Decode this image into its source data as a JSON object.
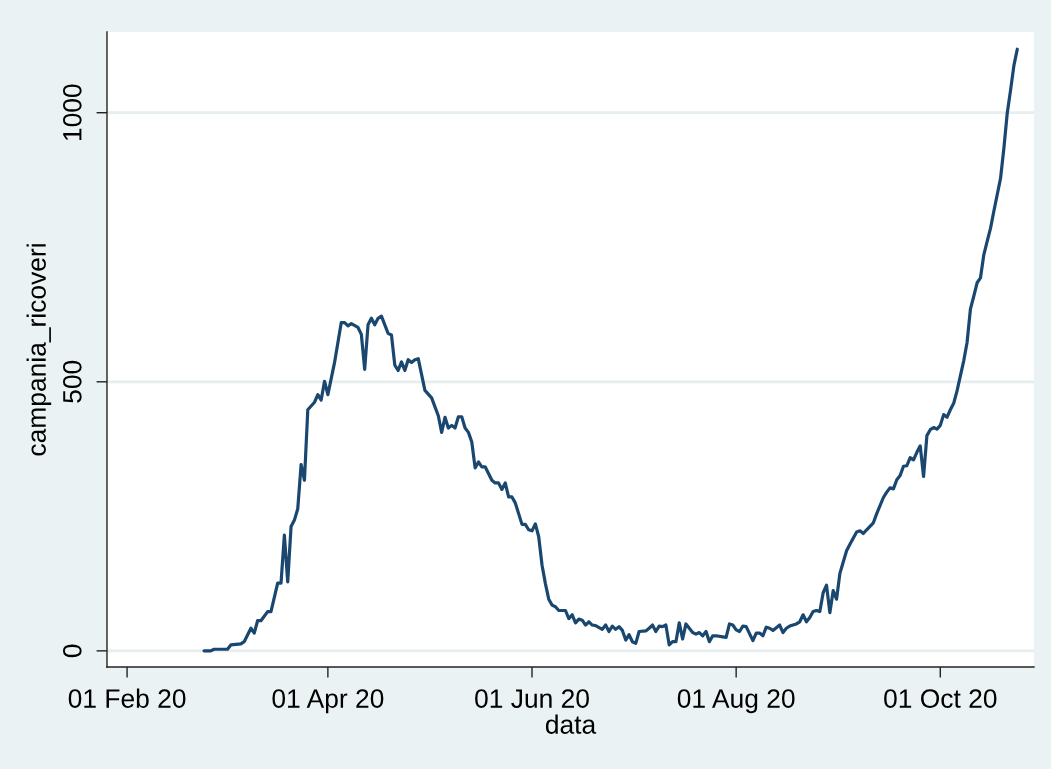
{
  "chart_data": {
    "type": "line",
    "xlabel": "data",
    "ylabel": "campania_ricoveri",
    "x": [
      "2020-02-24",
      "2020-02-26",
      "2020-02-27",
      "2020-03-02",
      "2020-03-03",
      "2020-03-06",
      "2020-03-07",
      "2020-03-09",
      "2020-03-10",
      "2020-03-11",
      "2020-03-12",
      "2020-03-14",
      "2020-03-15",
      "2020-03-17",
      "2020-03-18",
      "2020-03-19",
      "2020-03-20",
      "2020-03-21",
      "2020-03-22",
      "2020-03-23",
      "2020-03-24",
      "2020-03-25",
      "2020-03-26",
      "2020-03-28",
      "2020-03-29",
      "2020-03-30",
      "2020-03-31",
      "2020-04-01",
      "2020-04-03",
      "2020-04-05",
      "2020-04-06",
      "2020-04-07",
      "2020-04-08",
      "2020-04-10",
      "2020-04-11",
      "2020-04-12",
      "2020-04-13",
      "2020-04-14",
      "2020-04-15",
      "2020-04-16",
      "2020-04-17",
      "2020-04-19",
      "2020-04-20",
      "2020-04-21",
      "2020-04-22",
      "2020-04-23",
      "2020-04-24",
      "2020-04-25",
      "2020-04-26",
      "2020-04-27",
      "2020-04-28",
      "2020-04-30",
      "2020-05-02",
      "2020-05-04",
      "2020-05-05",
      "2020-05-06",
      "2020-05-07",
      "2020-05-08",
      "2020-05-09",
      "2020-05-10",
      "2020-05-11",
      "2020-05-12",
      "2020-05-13",
      "2020-05-14",
      "2020-05-15",
      "2020-05-16",
      "2020-05-17",
      "2020-05-18",
      "2020-05-20",
      "2020-05-21",
      "2020-05-22",
      "2020-05-23",
      "2020-05-24",
      "2020-05-25",
      "2020-05-26",
      "2020-05-27",
      "2020-05-28",
      "2020-05-29",
      "2020-05-30",
      "2020-05-31",
      "2020-06-01",
      "2020-06-02",
      "2020-06-03",
      "2020-06-04",
      "2020-06-05",
      "2020-06-06",
      "2020-06-07",
      "2020-06-08",
      "2020-06-09",
      "2020-06-11",
      "2020-06-12",
      "2020-06-13",
      "2020-06-14",
      "2020-06-15",
      "2020-06-16",
      "2020-06-17",
      "2020-06-18",
      "2020-06-19",
      "2020-06-20",
      "2020-06-22",
      "2020-06-23",
      "2020-06-24",
      "2020-06-25",
      "2020-06-26",
      "2020-06-27",
      "2020-06-28",
      "2020-06-29",
      "2020-06-30",
      "2020-07-01",
      "2020-07-02",
      "2020-07-03",
      "2020-07-05",
      "2020-07-06",
      "2020-07-07",
      "2020-07-08",
      "2020-07-09",
      "2020-07-10",
      "2020-07-11",
      "2020-07-12",
      "2020-07-13",
      "2020-07-14",
      "2020-07-15",
      "2020-07-16",
      "2020-07-17",
      "2020-07-18",
      "2020-07-19",
      "2020-07-20",
      "2020-07-21",
      "2020-07-22",
      "2020-07-23",
      "2020-07-24",
      "2020-07-25",
      "2020-07-26",
      "2020-07-28",
      "2020-07-29",
      "2020-07-30",
      "2020-07-31",
      "2020-08-01",
      "2020-08-02",
      "2020-08-03",
      "2020-08-04",
      "2020-08-06",
      "2020-08-07",
      "2020-08-08",
      "2020-08-09",
      "2020-08-10",
      "2020-08-11",
      "2020-08-12",
      "2020-08-14",
      "2020-08-15",
      "2020-08-16",
      "2020-08-17",
      "2020-08-19",
      "2020-08-20",
      "2020-08-21",
      "2020-08-22",
      "2020-08-23",
      "2020-08-24",
      "2020-08-25",
      "2020-08-26",
      "2020-08-27",
      "2020-08-28",
      "2020-08-29",
      "2020-08-30",
      "2020-08-31",
      "2020-09-01",
      "2020-09-02",
      "2020-09-03",
      "2020-09-04",
      "2020-09-06",
      "2020-09-07",
      "2020-09-08",
      "2020-09-09",
      "2020-09-11",
      "2020-09-12",
      "2020-09-14",
      "2020-09-15",
      "2020-09-16",
      "2020-09-17",
      "2020-09-18",
      "2020-09-19",
      "2020-09-20",
      "2020-09-21",
      "2020-09-22",
      "2020-09-23",
      "2020-09-24",
      "2020-09-25",
      "2020-09-26",
      "2020-09-27",
      "2020-09-28",
      "2020-09-29",
      "2020-09-30",
      "2020-10-01",
      "2020-10-02",
      "2020-10-03",
      "2020-10-04",
      "2020-10-05",
      "2020-10-06",
      "2020-10-07",
      "2020-10-08",
      "2020-10-09",
      "2020-10-10",
      "2020-10-11",
      "2020-10-12",
      "2020-10-13",
      "2020-10-14",
      "2020-10-15",
      "2020-10-16",
      "2020-10-17",
      "2020-10-19",
      "2020-10-20",
      "2020-10-21",
      "2020-10-22",
      "2020-10-23",
      "2020-10-24"
    ],
    "series": [
      {
        "color": "#1a476f",
        "values": [
          0,
          0,
          3,
          3,
          11,
          13,
          17,
          42,
          33,
          56,
          56,
          73,
          73,
          126,
          126,
          215,
          128,
          231,
          243,
          264,
          346,
          317,
          448,
          462,
          476,
          466,
          501,
          476,
          536,
          610,
          610,
          604,
          608,
          601,
          588,
          523,
          606,
          618,
          606,
          618,
          622,
          590,
          587,
          531,
          521,
          537,
          521,
          541,
          536,
          541,
          543,
          484,
          470,
          437,
          406,
          434,
          414,
          419,
          414,
          435,
          435,
          414,
          406,
          388,
          340,
          351,
          342,
          342,
          317,
          312,
          312,
          300,
          312,
          286,
          286,
          275,
          255,
          235,
          235,
          225,
          223,
          236,
          212,
          159,
          125,
          96,
          85,
          82,
          75,
          75,
          60,
          67,
          52,
          59,
          57,
          48,
          54,
          48,
          47,
          40,
          48,
          36,
          46,
          40,
          45,
          38,
          20,
          30,
          17,
          14,
          36,
          37,
          42,
          48,
          36,
          46,
          45,
          48,
          11,
          17,
          17,
          52,
          22,
          50,
          42,
          34,
          31,
          34,
          28,
          36,
          17,
          28,
          28,
          26,
          25,
          50,
          48,
          39,
          36,
          46,
          45,
          19,
          33,
          33,
          28,
          44,
          42,
          38,
          48,
          34,
          42,
          46,
          50,
          54,
          67,
          54,
          62,
          73,
          75,
          73,
          108,
          122,
          71,
          112,
          96,
          144,
          165,
          186,
          198,
          221,
          223,
          218,
          225,
          238,
          255,
          285,
          295,
          303,
          301,
          318,
          326,
          343,
          344,
          359,
          355,
          369,
          381,
          324,
          400,
          411,
          415,
          412,
          419,
          439,
          434,
          448,
          460,
          483,
          511,
          539,
          573,
          635,
          659,
          684,
          693,
          736,
          761,
          785,
          817,
          878,
          934,
          999,
          1042,
          1088,
          1118
        ]
      }
    ],
    "xlim": [
      "2020-01-26",
      "2020-10-29"
    ],
    "ylim": [
      -30,
      1150
    ],
    "xticks": [
      {
        "value": "2020-02-01",
        "label": "01 Feb 20"
      },
      {
        "value": "2020-04-01",
        "label": "01 Apr 20"
      },
      {
        "value": "2020-06-01",
        "label": "01 Jun 20"
      },
      {
        "value": "2020-08-01",
        "label": "01 Aug 20"
      },
      {
        "value": "2020-10-01",
        "label": "01 Oct 20"
      }
    ],
    "yticks": [
      0,
      500,
      1000
    ],
    "grid": "y",
    "line_style": "solid"
  }
}
